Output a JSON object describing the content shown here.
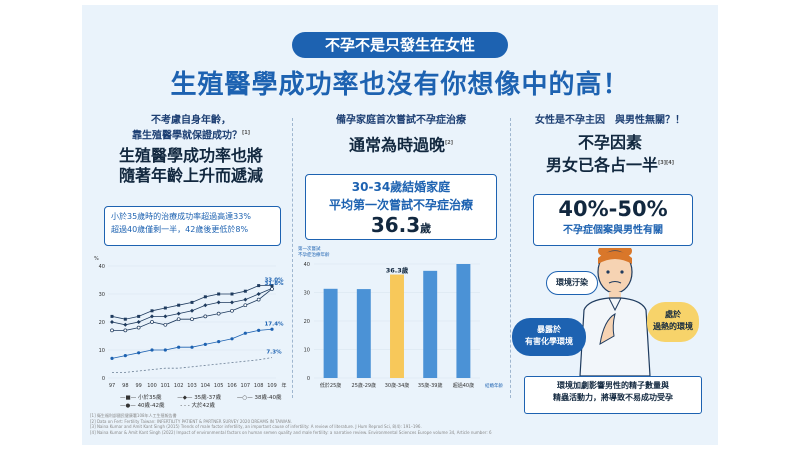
{
  "header": {
    "pill": "不孕不是只發生在女性",
    "headline": "生殖醫學成功率也沒有你想像中的高！"
  },
  "col1": {
    "small_title_line1": "不考慮自身年齡，",
    "small_title_line2": "靠生殖醫學就保證成功？",
    "small_sup": "[1]",
    "big_title_line1": "生殖醫學成功率也將",
    "big_title_line2": "隨著年齡上升而遞減",
    "box_line1": "小於35歲時的治療成功率超過高達33%",
    "box_line2": "超過40歲僅剩一半，42歲後更低於8%"
  },
  "col2": {
    "small_title": "備孕家庭首次嘗試不孕症治療",
    "big_title": "通常為時過晚",
    "big_sup": "[2]",
    "box_line1": "30-34歲結婚家庭",
    "box_line2": "平均第一次嘗試不孕症治療",
    "box_value": "36.3",
    "box_unit": "歲"
  },
  "col3": {
    "small_title": "女性是不孕主因　與男性無關？！",
    "big_title_line1": "不孕因素",
    "big_title_line2": "男女已各占一半",
    "big_sup": "[3][4]",
    "box_value": "40%-50%",
    "box_sub": "不孕症個案與男性有關",
    "bubble_env": "環境汙染",
    "bubble_heat_line1": "處於",
    "bubble_heat_line2": "過熱的環境",
    "bubble_chem_line1": "暴露於",
    "bubble_chem_line2": "有害化學環境",
    "caption_line1": "環境加劇影響男性的精子數量與",
    "caption_line2": "精蟲活動力，將導致不易成功受孕"
  },
  "chart_data": [
    {
      "type": "line",
      "ylabel": "%",
      "xlabel": "年",
      "x": [
        "97",
        "98",
        "99",
        "100",
        "101",
        "102",
        "103",
        "104",
        "105",
        "106",
        "107",
        "108",
        "109"
      ],
      "ylim": [
        0,
        40
      ],
      "yticks": [
        "0",
        "10",
        "20",
        "30",
        "40"
      ],
      "series": [
        {
          "name": "小於35歲",
          "style": "solid-square",
          "values": [
            22,
            21,
            22,
            24,
            25,
            26,
            27,
            29,
            30,
            30,
            31,
            33,
            33
          ]
        },
        {
          "name": "35歲-37歲",
          "style": "solid-diamond",
          "values": [
            20,
            19,
            20,
            22,
            22,
            23,
            24,
            26,
            27,
            27,
            28,
            30,
            32
          ]
        },
        {
          "name": "38歲-40歲",
          "style": "solid-open",
          "values": [
            17,
            17,
            18,
            20,
            19,
            21,
            21,
            22,
            23,
            24,
            26,
            28,
            31.8
          ]
        },
        {
          "name": "40歲-42歲",
          "style": "solid-dot",
          "values": [
            7,
            8,
            9,
            10,
            10,
            11,
            11,
            12,
            13,
            14,
            16,
            17,
            17.4
          ]
        },
        {
          "name": "大於42歲",
          "style": "dashed",
          "values": [
            2,
            2,
            2.5,
            3,
            3.5,
            3.5,
            4,
            4.5,
            5,
            5.5,
            6,
            6.5,
            7.3
          ]
        }
      ],
      "labels": {
        "s1": "33.0%",
        "s3": "31.8%",
        "s4": "17.4%",
        "s5": "7.3%"
      }
    },
    {
      "type": "bar",
      "ylabel_line1": "第一次嘗試",
      "ylabel_line2": "不孕症治療年齡",
      "xlabel": "結婚年齡",
      "categories": [
        "低於25歲",
        "25歲-29歲",
        "30歲-34歲",
        "35歲-39歲",
        "超過40歲"
      ],
      "values": [
        31.3,
        31.2,
        36.3,
        37.6,
        40
      ],
      "highlight_index": 2,
      "highlight_label": "36.3歲",
      "ylim": [
        0,
        40
      ],
      "yticks": [
        "0",
        "10",
        "20",
        "30",
        "40"
      ],
      "colors": {
        "normal": "#4b92d6",
        "highlight": "#f7c85a"
      }
    }
  ],
  "refs": {
    "r1": "[1] 衛生福利部國民健康署108年人工生殖報告書",
    "r2": "[2] Data on Fert: Fertility Taiwan: INFERTILITY PATIENT & PARTNER SURVEY 2020 DREAMS IN TAIWAN.",
    "r3": "[3] Naina Kumar and Amit Kant Singh (2015) Trends of male factor infertility, an important cause of infertility: A review of literature. J Hum Reprod Sci, 8(4): 191–196.",
    "r4": "[4] Naina Kumar & Amit Kant Singh (2022) Impact of environmental factors on human semen quality and male fertility: a narrative review. Environmental Sciences Europe volume 34, Article number: 6"
  }
}
